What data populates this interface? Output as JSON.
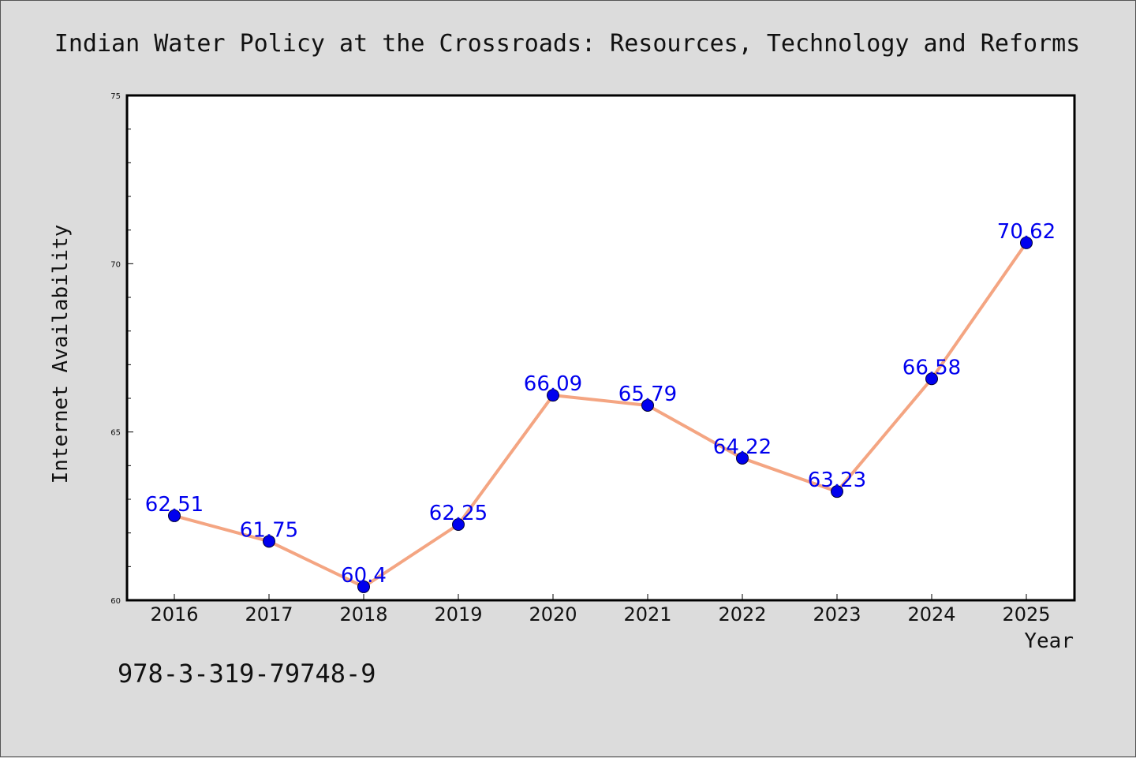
{
  "chart_data": {
    "type": "line",
    "title": "Indian Water Policy at the Crossroads: Resources, Technology and Reforms",
    "xlabel": "Year",
    "ylabel": "Internet Availability",
    "categories": [
      "2016",
      "2017",
      "2018",
      "2019",
      "2020",
      "2021",
      "2022",
      "2023",
      "2024",
      "2025"
    ],
    "series": [
      {
        "values": [
          62.51,
          61.75,
          60.4,
          62.25,
          66.09,
          65.79,
          64.22,
          63.23,
          66.58,
          70.62
        ],
        "labels": [
          "62.51",
          "61.75",
          "60.4",
          "62.25",
          "66.09",
          "65.79",
          "64.22",
          "63.23",
          "66.58",
          "70.62"
        ]
      }
    ],
    "ylim": [
      60,
      75
    ],
    "yticks": [
      "60",
      "65",
      "70",
      "75"
    ],
    "grid": false,
    "colors": {
      "line": "#f4a582",
      "marker": "#0000ee",
      "label": "#0000ee",
      "plot_bg": "#ffffff",
      "page_bg": "#dcdcdc"
    }
  },
  "footer": {
    "isbn": "978-3-319-79748-9"
  }
}
